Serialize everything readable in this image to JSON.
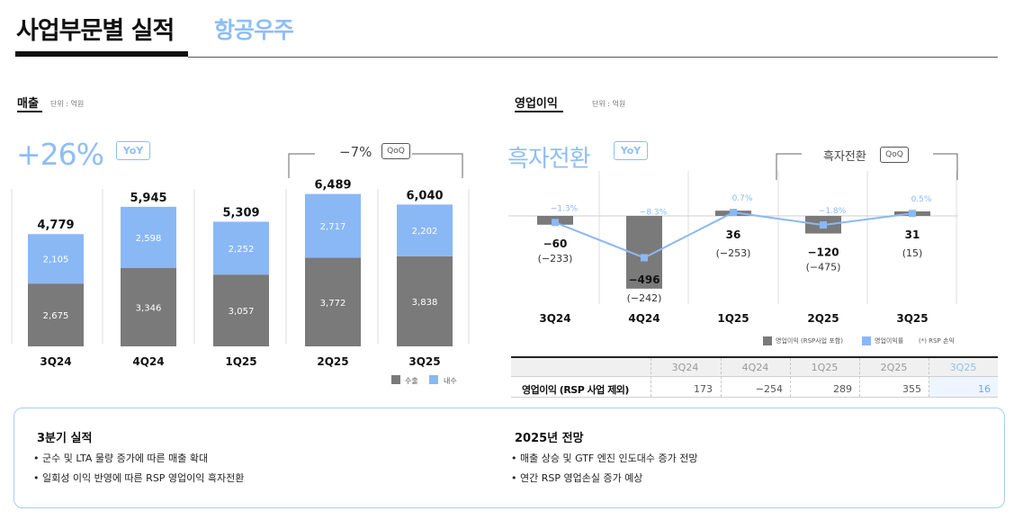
{
  "page": {
    "title": "사업부문별 실적",
    "subtitle": "항공우주"
  },
  "revenue": {
    "label": "매출",
    "unit": "단위 : 억원",
    "yoy_value": "+26%",
    "yoy_badge": "YoY",
    "qoq_value": "−7%",
    "qoq_badge": "QoQ",
    "legend_export": "수출",
    "legend_domestic": "내수",
    "colors": {
      "export": "#7a7a7a",
      "domestic": "#8ab8f5"
    }
  },
  "op": {
    "label": "영업이익",
    "unit": "단위 : 억원",
    "yoy_value": "흑자전환",
    "yoy_badge": "YoY",
    "qoq_value": "흑자전환",
    "qoq_badge": "QoQ",
    "legend_op": "영업이익 (RSP사업 포함)",
    "legend_margin": "영업이익률",
    "legend_note": "(*) RSP 손익",
    "colors": {
      "op": "#7a7a7a",
      "margin": "#8ab8f5"
    }
  },
  "chart_data": [
    {
      "type": "bar",
      "title": "매출",
      "stacked": true,
      "categories": [
        "3Q24",
        "4Q24",
        "1Q25",
        "2Q25",
        "3Q25"
      ],
      "totals": [
        "4,779",
        "5,945",
        "5,309",
        "6,489",
        "6,040"
      ],
      "series": [
        {
          "name": "수출",
          "values": [
            2675,
            3346,
            3057,
            3772,
            3838
          ],
          "labels": [
            "2,675",
            "3,346",
            "3,057",
            "3,772",
            "3,838"
          ]
        },
        {
          "name": "내수",
          "values": [
            2105,
            2598,
            2252,
            2717,
            2202
          ],
          "labels": [
            "2,105",
            "2,598",
            "2,252",
            "2,717",
            "2,202"
          ]
        }
      ],
      "ylim": [
        0,
        6600
      ]
    },
    {
      "type": "bar",
      "title": "영업이익",
      "categories": [
        "3Q24",
        "4Q24",
        "1Q25",
        "2Q25",
        "3Q25"
      ],
      "series": [
        {
          "name": "영업이익 (RSP사업 포함)",
          "values": [
            -60,
            -496,
            36,
            -120,
            31
          ],
          "labels": [
            "−60",
            "−496",
            "36",
            "−120",
            "31"
          ]
        },
        {
          "name": "RSP 손익",
          "labels": [
            "(−233)",
            "(−242)",
            "(−253)",
            "(−475)",
            "(15)"
          ]
        },
        {
          "name": "영업이익률",
          "type": "line",
          "values": [
            -1.3,
            -8.3,
            0.7,
            -1.8,
            0.5
          ],
          "labels": [
            "−1.3%",
            "−8.3%",
            "0.7%",
            "−1.8%",
            "0.5%"
          ]
        }
      ],
      "ylim": [
        -560,
        60
      ]
    },
    {
      "type": "table",
      "title": "영업이익 (RSP 사업 제외)",
      "columns": [
        "3Q24",
        "4Q24",
        "1Q25",
        "2Q25",
        "3Q25"
      ],
      "row_label": "영업이익 (RSP 사업 제외)",
      "values": [
        "173",
        "−254",
        "289",
        "355",
        "16"
      ]
    }
  ],
  "summary": {
    "left_title": "3분기 실적",
    "left_items": [
      "• 군수 및 LTA 물량 증가에 따른 매출 확대",
      "• 일회성 이익 반영에 따른 RSP 영업이익 흑자전환"
    ],
    "right_title": "2025년 전망",
    "right_items": [
      "• 매출 상승 및 GTF 엔진 인도대수 증가 전망",
      "• 연간 RSP 영업손실 증가 예상"
    ]
  }
}
